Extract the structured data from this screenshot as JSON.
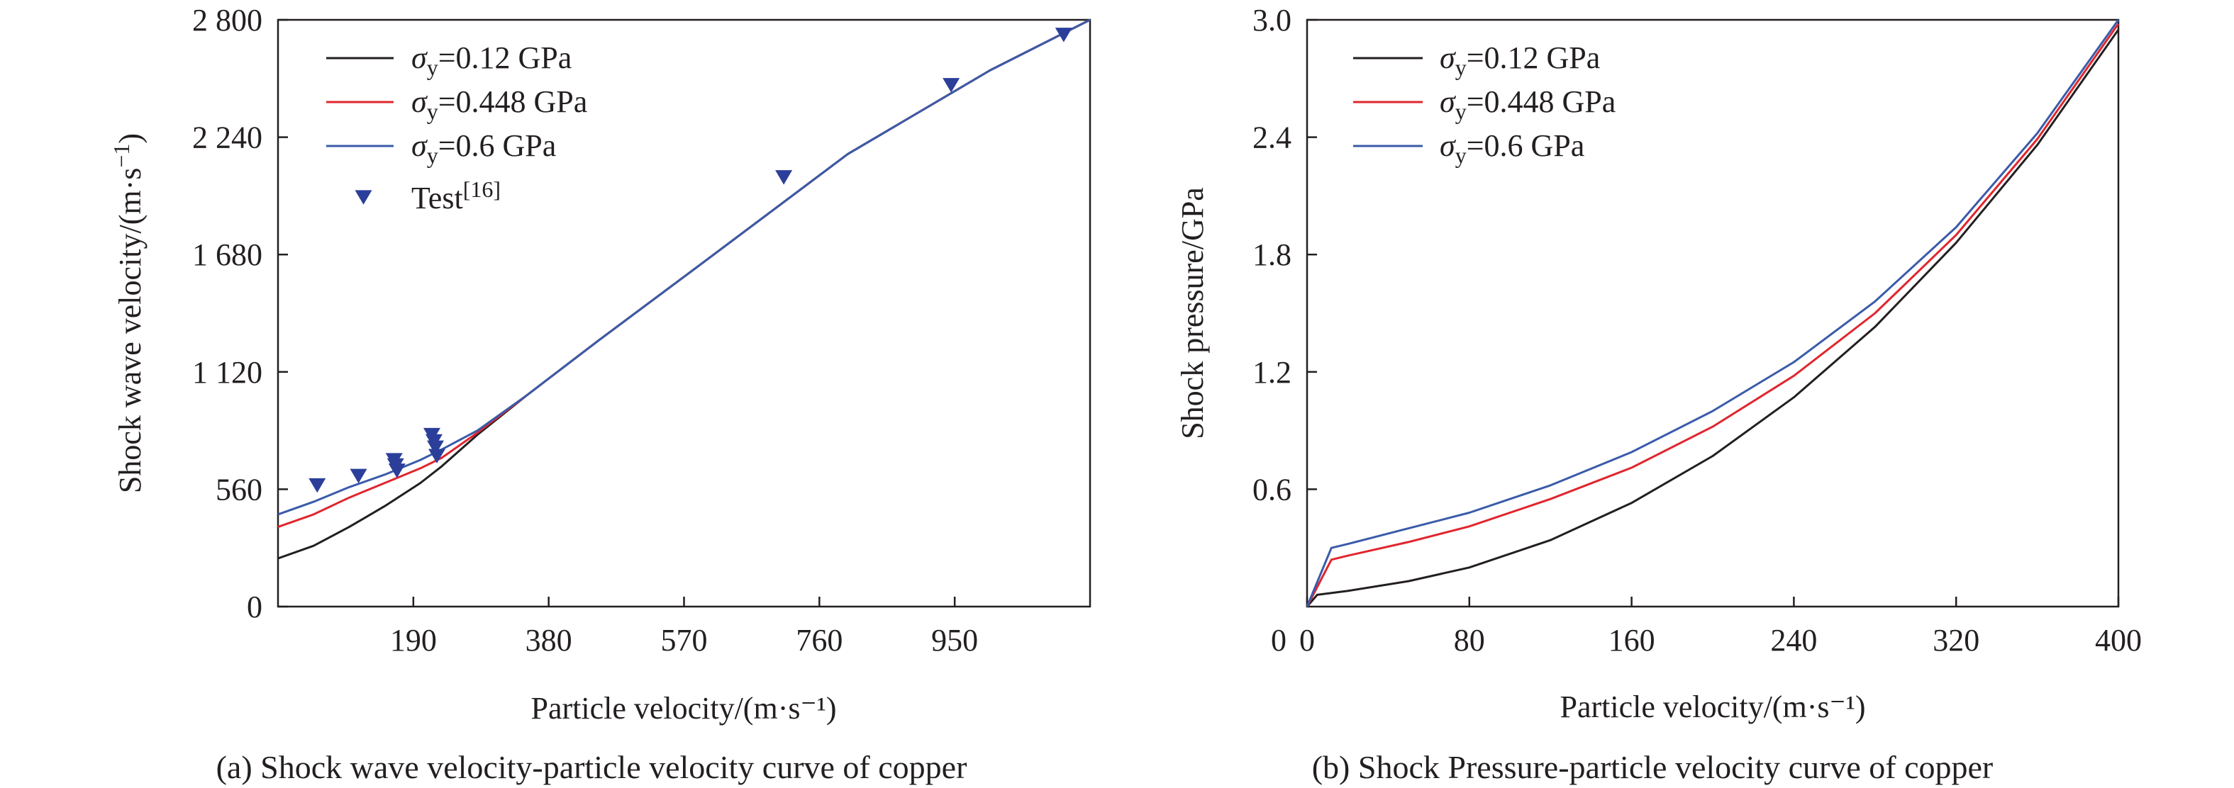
{
  "colors": {
    "black_series": "#231f20",
    "red_series": "#e0262e",
    "blue_series": "#3a5ba9",
    "marker": "#2b3f9a",
    "axis": "#231f20"
  },
  "chart_data": [
    {
      "type": "line",
      "title": "",
      "caption": "(a) Shock wave velocity-particle velocity curve of copper",
      "xlabel": "Particle velocity/(m·s⁻¹)",
      "ylabel_main": "Shock wave velocity/(m·s",
      "ylabel_sup": "−1",
      "ylabel_close": ")",
      "xlim": [
        0,
        1140
      ],
      "ylim": [
        0,
        2800
      ],
      "x_ticks": [
        190,
        380,
        570,
        760,
        950
      ],
      "x_tick_labels": [
        "190",
        "380",
        "570",
        "760",
        "950"
      ],
      "y_ticks": [
        0,
        560,
        1120,
        1680,
        2240,
        2800
      ],
      "y_tick_labels": [
        "0",
        "560",
        "1 120",
        "1 680",
        "2 240",
        "2 800"
      ],
      "grid": false,
      "legend_position": "top-left",
      "series": [
        {
          "name": "σy=0.12 GPa",
          "legend_prefix": "σ",
          "legend_sub": "y",
          "legend_suffix": "=0.12 GPa",
          "color_key": "black_series",
          "x": [
            0,
            50,
            100,
            150,
            200,
            230,
            280,
            350,
            450,
            600,
            800,
            1000,
            1140
          ],
          "y": [
            230,
            290,
            380,
            480,
            590,
            670,
            820,
            1010,
            1270,
            1650,
            2160,
            2560,
            2800
          ]
        },
        {
          "name": "σy=0.448 GPa",
          "legend_prefix": "σ",
          "legend_sub": "y",
          "legend_suffix": "=0.448 GPa",
          "color_key": "red_series",
          "x": [
            0,
            50,
            100,
            150,
            200,
            230,
            280,
            350,
            450,
            600,
            800,
            1000,
            1140
          ],
          "y": [
            380,
            440,
            520,
            590,
            660,
            710,
            830,
            1010,
            1270,
            1650,
            2160,
            2560,
            2800
          ]
        },
        {
          "name": "σy=0.6 GPa",
          "legend_prefix": "σ",
          "legend_sub": "y",
          "legend_suffix": "=0.6 GPa",
          "color_key": "blue_series",
          "x": [
            0,
            50,
            100,
            150,
            200,
            230,
            280,
            350,
            450,
            600,
            800,
            1000,
            1140
          ],
          "y": [
            440,
            500,
            570,
            630,
            700,
            750,
            840,
            1010,
            1270,
            1650,
            2160,
            2560,
            2800
          ]
        }
      ],
      "scatter": {
        "name": "Test[16]",
        "legend_text": "Test",
        "legend_sup": "[16]",
        "color_key": "marker",
        "x": [
          55,
          113,
          163,
          165,
          167,
          216,
          219,
          221,
          223,
          710,
          945,
          1103
        ],
        "y": [
          580,
          625,
          700,
          675,
          650,
          820,
          790,
          760,
          720,
          2050,
          2490,
          2730
        ]
      }
    },
    {
      "type": "line",
      "title": "",
      "caption": "(b) Shock Pressure-particle velocity curve of copper",
      "xlabel": "Particle velocity/(m·s⁻¹)",
      "ylabel": "Shock pressure/GPa",
      "xlim": [
        0,
        400
      ],
      "ylim": [
        0,
        3.0
      ],
      "x_ticks": [
        0,
        80,
        160,
        240,
        320,
        400
      ],
      "x_tick_labels": [
        "0",
        "80",
        "160",
        "240",
        "320",
        "400"
      ],
      "y_ticks": [
        0.6,
        1.2,
        1.8,
        2.4,
        3.0
      ],
      "y_tick_labels": [
        "0.6",
        "1.2",
        "1.8",
        "2.4",
        "3.0"
      ],
      "grid": false,
      "legend_position": "top-left",
      "series": [
        {
          "name": "σy=0.12 GPa",
          "legend_prefix": "σ",
          "legend_sub": "y",
          "legend_suffix": "=0.12 GPa",
          "color_key": "black_series",
          "x": [
            0,
            5,
            20,
            50,
            80,
            120,
            160,
            200,
            240,
            280,
            320,
            360,
            400
          ],
          "y": [
            0,
            0.06,
            0.08,
            0.13,
            0.2,
            0.34,
            0.53,
            0.77,
            1.07,
            1.43,
            1.86,
            2.36,
            2.95
          ]
        },
        {
          "name": "σy=0.448 GPa",
          "legend_prefix": "σ",
          "legend_sub": "y",
          "legend_suffix": "=0.448 GPa",
          "color_key": "red_series",
          "x": [
            0,
            12,
            20,
            50,
            80,
            120,
            160,
            200,
            240,
            280,
            320,
            360,
            400
          ],
          "y": [
            0,
            0.24,
            0.26,
            0.33,
            0.41,
            0.55,
            0.71,
            0.92,
            1.18,
            1.5,
            1.9,
            2.39,
            2.98
          ]
        },
        {
          "name": "σy=0.6 GPa",
          "legend_prefix": "σ",
          "legend_sub": "y",
          "legend_suffix": "=0.6 GPa",
          "color_key": "blue_series",
          "x": [
            0,
            12,
            20,
            50,
            80,
            120,
            160,
            200,
            240,
            280,
            320,
            360,
            400
          ],
          "y": [
            0,
            0.3,
            0.32,
            0.4,
            0.48,
            0.62,
            0.79,
            1.0,
            1.25,
            1.56,
            1.94,
            2.42,
            3.0
          ]
        }
      ]
    }
  ]
}
